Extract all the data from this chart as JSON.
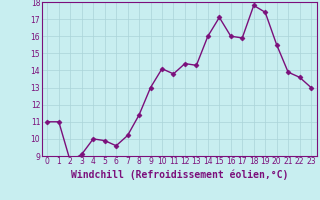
{
  "x": [
    0,
    1,
    2,
    3,
    4,
    5,
    6,
    7,
    8,
    9,
    10,
    11,
    12,
    13,
    14,
    15,
    16,
    17,
    18,
    19,
    20,
    21,
    22,
    23
  ],
  "y": [
    11.0,
    11.0,
    8.7,
    9.1,
    10.0,
    9.9,
    9.6,
    10.2,
    11.4,
    13.0,
    14.1,
    13.8,
    14.4,
    14.3,
    16.0,
    17.1,
    16.0,
    15.9,
    17.8,
    17.4,
    15.5,
    13.9,
    13.6,
    13.0
  ],
  "line_color": "#7b0f7b",
  "marker": "D",
  "marker_size": 2.5,
  "bg_color": "#c8eef0",
  "grid_color": "#aad4d8",
  "xlabel": "Windchill (Refroidissement éolien,°C)",
  "xlabel_fontsize": 7,
  "ylim": [
    9,
    18
  ],
  "xlim_min": -0.5,
  "xlim_max": 23.5,
  "yticks": [
    9,
    10,
    11,
    12,
    13,
    14,
    15,
    16,
    17,
    18
  ],
  "xticks": [
    0,
    1,
    2,
    3,
    4,
    5,
    6,
    7,
    8,
    9,
    10,
    11,
    12,
    13,
    14,
    15,
    16,
    17,
    18,
    19,
    20,
    21,
    22,
    23
  ],
  "tick_fontsize": 5.5,
  "line_width": 1.0
}
